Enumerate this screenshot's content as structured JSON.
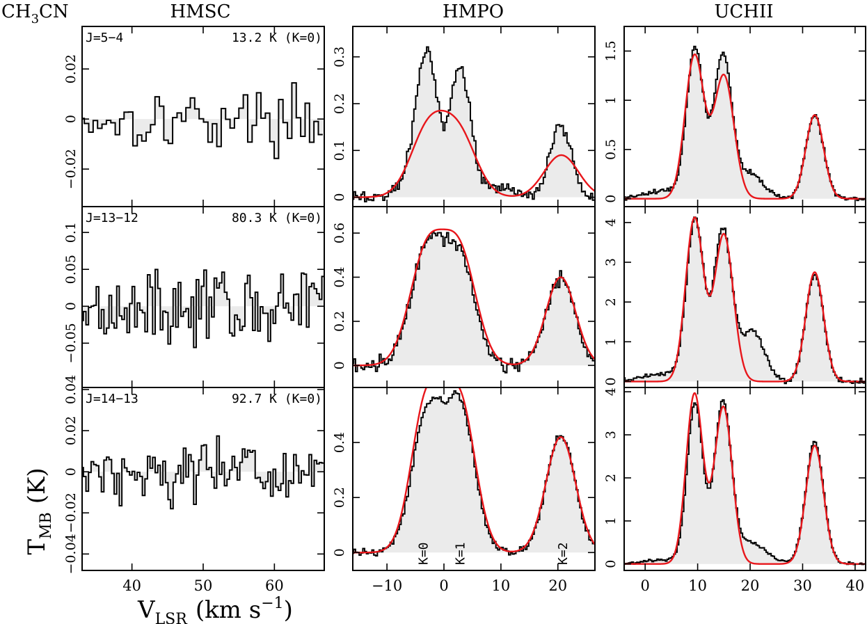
{
  "molecule_label": "CH3CN",
  "molecule_label_main": "CH",
  "molecule_label_sub": "3",
  "molecule_label_tail": "CN",
  "ylabel_main": "T",
  "ylabel_sub": "MB",
  "ylabel_unit": "(K)",
  "xlabel_main": "V",
  "xlabel_sub": "LSR",
  "xlabel_unit": "(km s",
  "xlabel_unit_sup": "−1",
  "xlabel_unit_close": ")",
  "colors": {
    "spectrum": "#000000",
    "fill": "#ebebeb",
    "fit": "#e8161b"
  },
  "chart_data": [
    {
      "type": "line",
      "column": "HMSC",
      "row": 0,
      "title": "HMSC",
      "transition": "J=5−4",
      "energy": "13.2 K (K=0)",
      "xlim": [
        33,
        67
      ],
      "ylim": [
        -0.035,
        0.037
      ],
      "yticks": [
        -0.02,
        0,
        0.02
      ],
      "ytick_labels": [
        "−0.02",
        "0",
        "0.02"
      ],
      "xticks": [
        40,
        50,
        60
      ],
      "xtick_labels": [],
      "profile": "noise",
      "noise": 0.01,
      "fit": []
    },
    {
      "type": "line",
      "column": "HMSC",
      "row": 1,
      "transition": "J=13−12",
      "energy": "80.3 K (K=0)",
      "xlim": [
        33,
        67
      ],
      "ylim": [
        -0.11,
        0.135
      ],
      "yticks": [
        -0.05,
        0,
        0.05,
        0.1
      ],
      "ytick_labels": [
        "−0.05",
        "0",
        "0.05",
        "0.1"
      ],
      "xticks": [
        40,
        50,
        60
      ],
      "xtick_labels": [],
      "profile": "noise",
      "noise": 0.04,
      "fit": []
    },
    {
      "type": "line",
      "column": "HMSC",
      "row": 2,
      "transition": "J=14−13",
      "energy": "92.7 K (K=0)",
      "xlim": [
        33,
        67
      ],
      "ylim": [
        -0.048,
        0.041
      ],
      "yticks": [
        -0.04,
        -0.02,
        0,
        0.02,
        0.04
      ],
      "ytick_labels": [
        "−0.04",
        "−0.02",
        "0",
        "0.02",
        "0.04"
      ],
      "xticks": [
        40,
        50,
        60
      ],
      "xtick_labels": [
        "40",
        "50",
        "60"
      ],
      "profile": "noise",
      "noise": 0.013,
      "fit": []
    },
    {
      "type": "line",
      "column": "HMPO",
      "row": 0,
      "title": "HMPO",
      "xlim": [
        -16,
        26.5
      ],
      "ylim": [
        -0.02,
        0.365
      ],
      "yticks": [
        0,
        0.1,
        0.2,
        0.3
      ],
      "ytick_labels": [
        "0",
        "0.1",
        "0.2",
        "0.3"
      ],
      "xticks": [
        -10,
        0,
        10,
        20
      ],
      "xtick_labels": [],
      "profile": "spectrum",
      "noise": 0.012,
      "obs": [
        [
          -3,
          0.29,
          1.8
        ],
        [
          2.8,
          0.27,
          1.8
        ],
        [
          20.4,
          0.15,
          1.9
        ],
        [
          -5.5,
          0.04,
          2.2
        ],
        [
          9,
          0.02,
          4
        ]
      ],
      "fit": [
        [
          -2.8,
          0.14,
          3.1
        ],
        [
          2.6,
          0.13,
          3.1
        ],
        [
          20.6,
          0.09,
          3.0
        ]
      ]
    },
    {
      "type": "line",
      "column": "HMPO",
      "row": 1,
      "xlim": [
        -16,
        26.5
      ],
      "ylim": [
        -0.1,
        0.72
      ],
      "yticks": [
        0,
        0.2,
        0.4,
        0.6
      ],
      "ytick_labels": [
        "0",
        "0.2",
        "0.4",
        "0.6"
      ],
      "xticks": [
        -10,
        0,
        10,
        20
      ],
      "xtick_labels": [],
      "profile": "spectrum",
      "noise": 0.03,
      "obs": [
        [
          -3,
          0.53,
          2.8
        ],
        [
          2.8,
          0.48,
          2.7
        ],
        [
          20.5,
          0.4,
          2.5
        ]
      ],
      "fit": [
        [
          -3,
          0.51,
          3.0
        ],
        [
          2.8,
          0.49,
          2.9
        ],
        [
          20.5,
          0.4,
          2.6
        ]
      ]
    },
    {
      "type": "line",
      "column": "HMPO",
      "row": 2,
      "xlim": [
        -16,
        26.5
      ],
      "ylim": [
        -0.065,
        0.6
      ],
      "yticks": [
        0,
        0.2,
        0.4
      ],
      "ytick_labels": [
        "0",
        "0.2",
        "0.4"
      ],
      "xticks": [
        -10,
        0,
        10,
        20
      ],
      "xtick_labels": [
        "−10",
        "0",
        "10",
        "20"
      ],
      "profile": "spectrum",
      "noise": 0.012,
      "obs": [
        [
          -3,
          0.5,
          2.6
        ],
        [
          2.8,
          0.52,
          2.6
        ],
        [
          20.5,
          0.43,
          2.5
        ]
      ],
      "fit": [
        [
          -3,
          0.55,
          2.7
        ],
        [
          2.8,
          0.54,
          2.7
        ],
        [
          20.5,
          0.42,
          2.6
        ]
      ],
      "annotations": [
        {
          "x": -3.5,
          "text": "K=0"
        },
        {
          "x": 3,
          "text": "K=1"
        },
        {
          "x": 21,
          "text": "K=2"
        }
      ]
    },
    {
      "type": "line",
      "column": "UCHII",
      "row": 0,
      "title": "UCHII",
      "xlim": [
        -4,
        42
      ],
      "ylim": [
        -0.08,
        1.75
      ],
      "yticks": [
        0,
        0.5,
        1,
        1.5
      ],
      "ytick_labels": [
        "0",
        "0.5",
        "1",
        "1.5"
      ],
      "xticks": [
        0,
        10,
        20,
        30,
        40
      ],
      "xtick_labels": [],
      "profile": "spectrum",
      "noise": 0.02,
      "obs": [
        [
          9.5,
          1.5,
          1.6
        ],
        [
          14.8,
          1.45,
          1.7
        ],
        [
          20,
          0.25,
          2.5
        ],
        [
          32.3,
          0.85,
          1.7
        ],
        [
          4,
          0.08,
          4
        ]
      ],
      "fit": [
        [
          9.4,
          1.45,
          1.8
        ],
        [
          15,
          1.25,
          1.9
        ],
        [
          32.3,
          0.85,
          1.7
        ]
      ]
    },
    {
      "type": "line",
      "column": "UCHII",
      "row": 1,
      "xlim": [
        -4,
        42
      ],
      "ylim": [
        -0.15,
        4.4
      ],
      "yticks": [
        0,
        1,
        2,
        3,
        4
      ],
      "ytick_labels": [
        "0",
        "1",
        "2",
        "3",
        "4"
      ],
      "xticks": [
        0,
        10,
        20,
        30,
        40
      ],
      "xtick_labels": [],
      "profile": "spectrum",
      "noise": 0.06,
      "obs": [
        [
          9.5,
          4.0,
          1.6
        ],
        [
          14.8,
          3.8,
          1.7
        ],
        [
          20.5,
          1.3,
          2.2
        ],
        [
          32.3,
          2.7,
          1.7
        ],
        [
          4,
          0.2,
          4
        ]
      ],
      "fit": [
        [
          9.4,
          4.1,
          1.7
        ],
        [
          15,
          3.7,
          1.8
        ],
        [
          32.3,
          2.75,
          1.7
        ]
      ]
    },
    {
      "type": "line",
      "column": "UCHII",
      "row": 2,
      "xlim": [
        -4,
        42
      ],
      "ylim": [
        -0.15,
        4.1
      ],
      "yticks": [
        0,
        1,
        2,
        3,
        4
      ],
      "ytick_labels": [
        "0",
        "1",
        "2",
        "3",
        "4"
      ],
      "xticks": [
        0,
        10,
        20,
        30,
        40
      ],
      "xtick_labels": [
        "0",
        "10",
        "20",
        "30",
        "40"
      ],
      "profile": "spectrum",
      "noise": 0.03,
      "obs": [
        [
          9.5,
          3.7,
          1.5
        ],
        [
          14.8,
          3.7,
          1.6
        ],
        [
          20,
          0.5,
          3.0
        ],
        [
          32.3,
          2.85,
          1.7
        ],
        [
          4,
          0.1,
          4
        ]
      ],
      "fit": [
        [
          9.4,
          3.95,
          1.6
        ],
        [
          14.9,
          3.65,
          1.7
        ],
        [
          32.3,
          2.75,
          1.7
        ]
      ]
    }
  ]
}
